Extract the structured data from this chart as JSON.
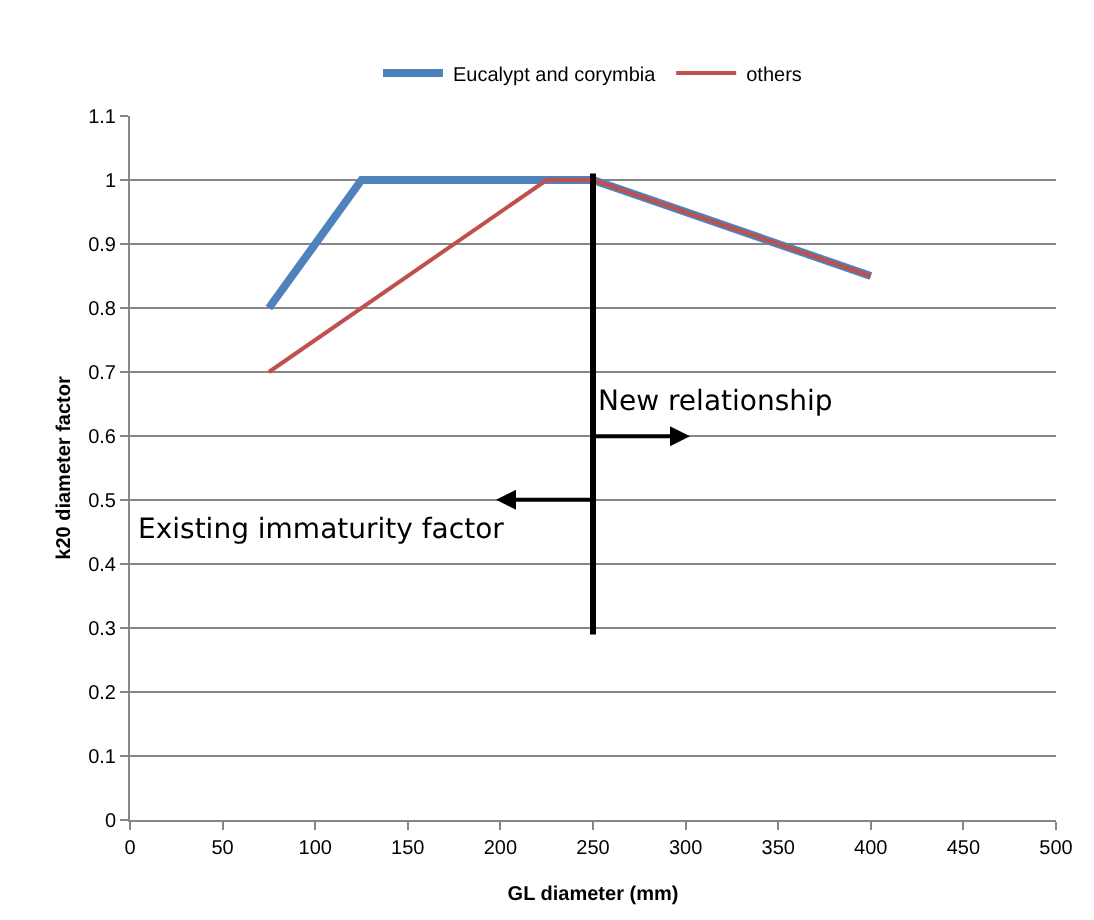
{
  "chart_data": {
    "type": "line",
    "xlabel": "GL diameter (mm)",
    "ylabel": "k20 diameter factor",
    "series": [
      {
        "name": "Eucalypt and corymbia",
        "color": "#4f81bd",
        "x": [
          75,
          125,
          250,
          400
        ],
        "values": [
          0.8,
          1.0,
          1.0,
          0.85
        ]
      },
      {
        "name": "others",
        "color": "#c0504d",
        "x": [
          75,
          225,
          250,
          400
        ],
        "values": [
          0.7,
          1.0,
          1.0,
          0.85
        ]
      },
      {
        "type": "line",
        "color": "#000000",
        "x": [
          250,
          250
        ],
        "values": [
          0.29,
          1.01
        ]
      }
    ],
    "annotations": [
      "New relationship",
      "Existing immaturity factor"
    ],
    "xlim": [
      0,
      500
    ],
    "xticks": [
      0,
      50,
      100,
      150,
      200,
      250,
      300,
      350,
      400,
      450,
      500
    ],
    "ylim": [
      0,
      1.1
    ],
    "yticks": [
      0,
      0.1,
      0.2,
      0.3,
      0.4,
      0.5,
      0.6,
      0.7,
      0.8,
      0.9,
      1,
      1.1
    ],
    "grid": "y",
    "legend": "top",
    "marker": "none",
    "line_style": "solid"
  }
}
